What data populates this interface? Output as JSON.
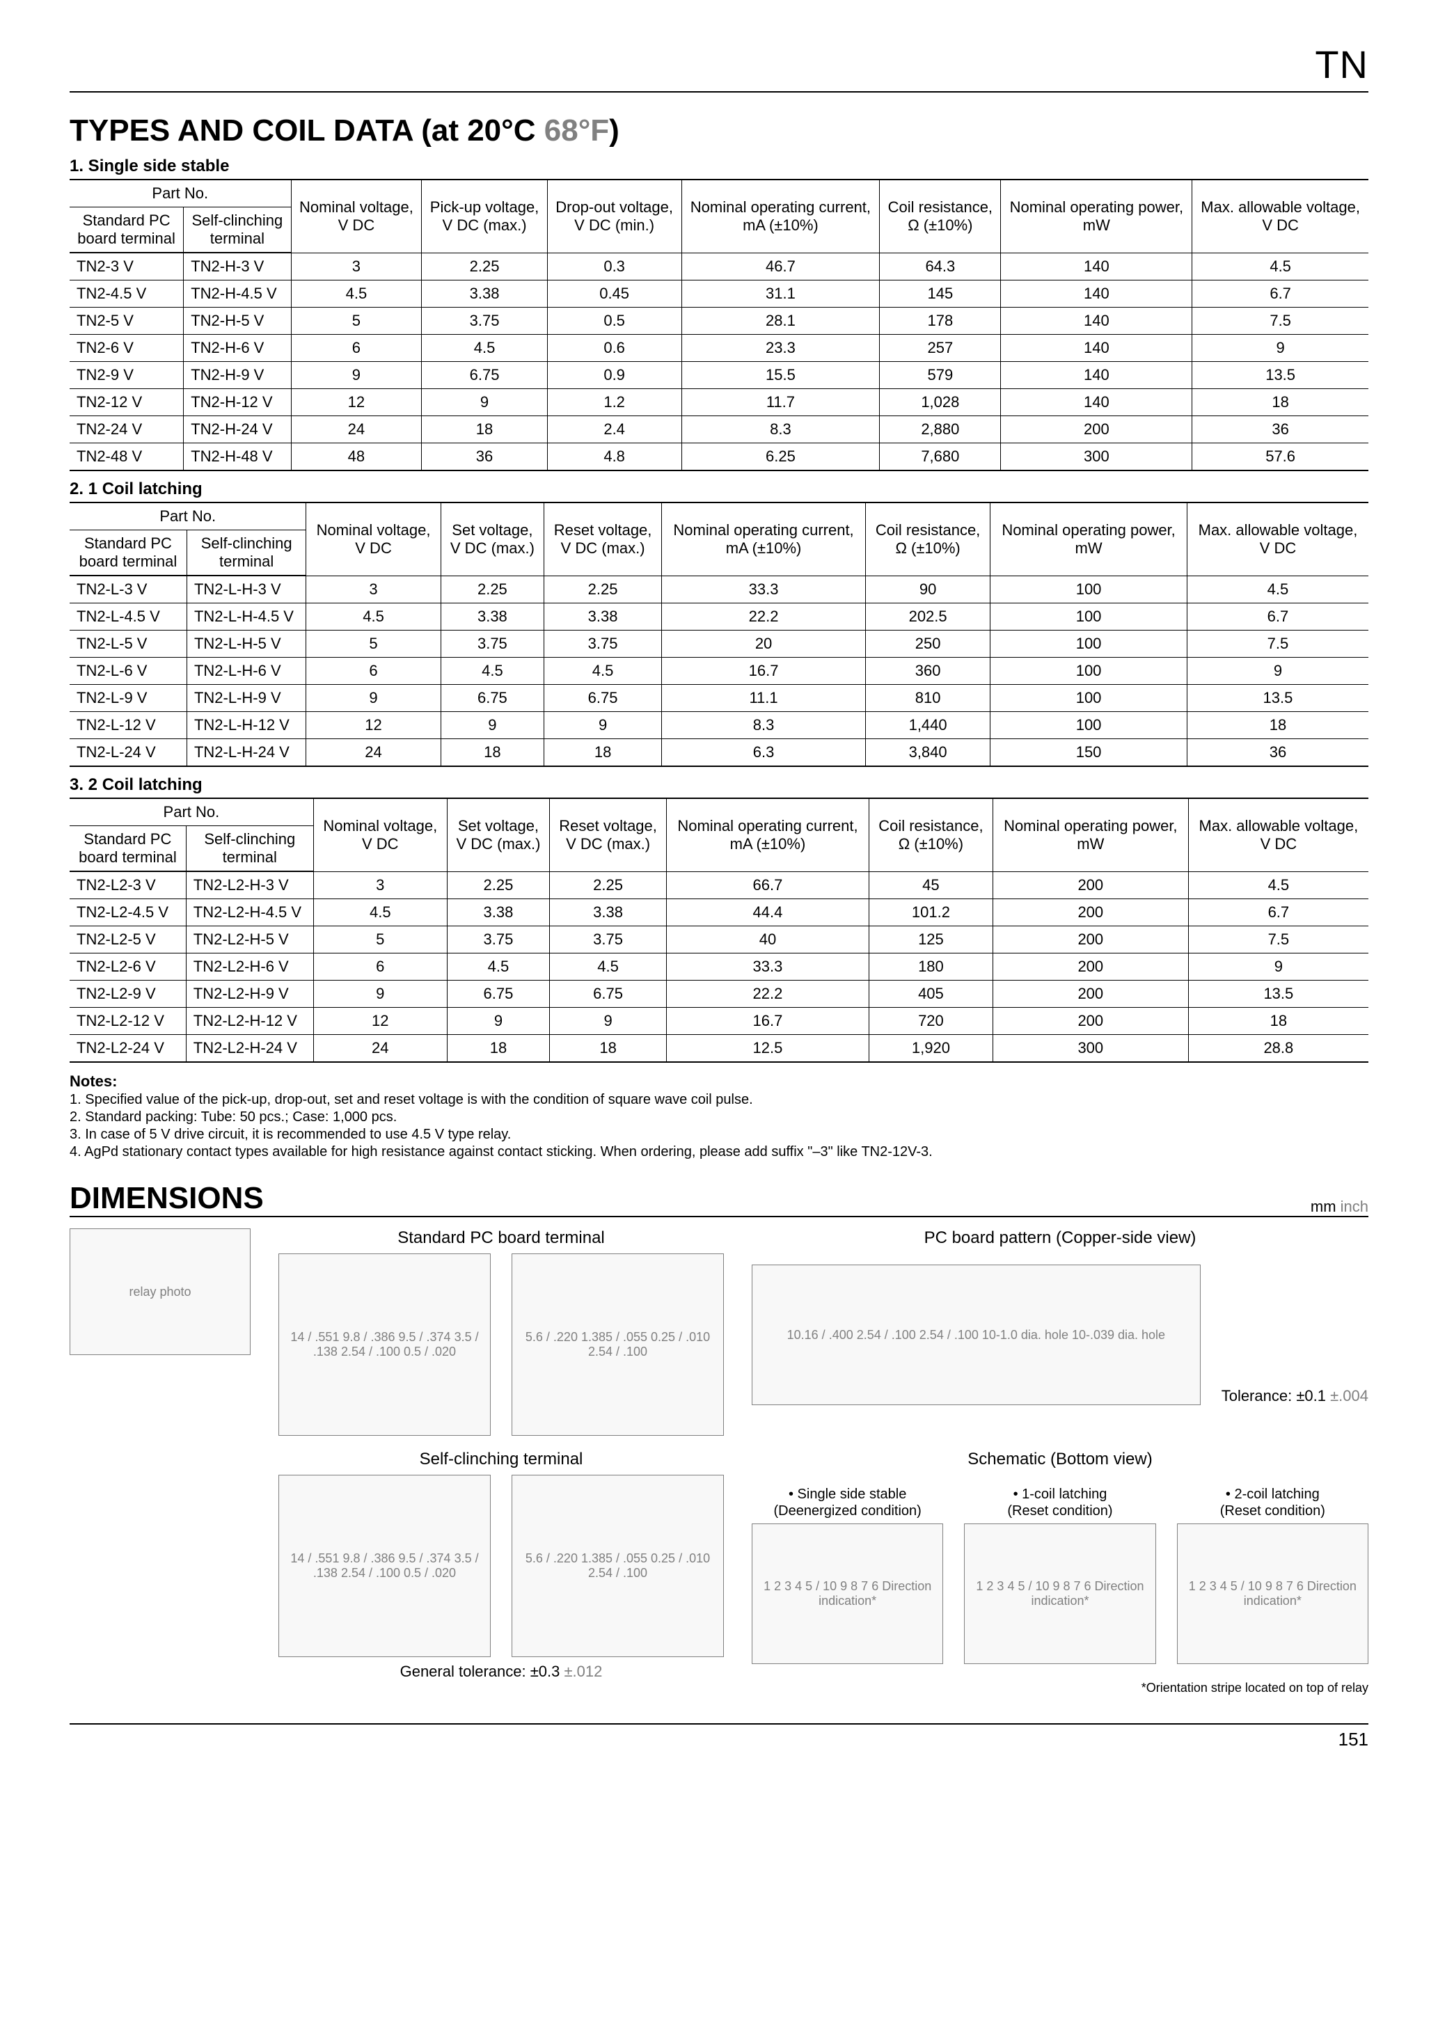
{
  "corner_label": "TN",
  "page_number": "151",
  "section_title_main": "TYPES AND COIL DATA (at 20°C ",
  "section_title_gray": "68°F",
  "section_title_close": ")",
  "tables": [
    {
      "subhead": "1. Single side stable",
      "partno_header": "Part No.",
      "part_col1": "Standard PC board terminal",
      "part_col2": "Self-clinching terminal",
      "headers": [
        "Nominal voltage, V DC",
        "Pick-up voltage, V DC (max.)",
        "Drop-out voltage, V DC (min.)",
        "Nominal operating current, mA (±10%)",
        "Coil resistance, Ω (±10%)",
        "Nominal operating power, mW",
        "Max. allowable voltage, V DC"
      ],
      "rows": [
        [
          "TN2-3 V",
          "TN2-H-3 V",
          "3",
          "2.25",
          "0.3",
          "46.7",
          "64.3",
          "140",
          "4.5"
        ],
        [
          "TN2-4.5 V",
          "TN2-H-4.5 V",
          "4.5",
          "3.38",
          "0.45",
          "31.1",
          "145",
          "140",
          "6.7"
        ],
        [
          "TN2-5 V",
          "TN2-H-5 V",
          "5",
          "3.75",
          "0.5",
          "28.1",
          "178",
          "140",
          "7.5"
        ],
        [
          "TN2-6 V",
          "TN2-H-6 V",
          "6",
          "4.5",
          "0.6",
          "23.3",
          "257",
          "140",
          "9"
        ],
        [
          "TN2-9 V",
          "TN2-H-9 V",
          "9",
          "6.75",
          "0.9",
          "15.5",
          "579",
          "140",
          "13.5"
        ],
        [
          "TN2-12 V",
          "TN2-H-12 V",
          "12",
          "9",
          "1.2",
          "11.7",
          "1,028",
          "140",
          "18"
        ],
        [
          "TN2-24 V",
          "TN2-H-24 V",
          "24",
          "18",
          "2.4",
          "8.3",
          "2,880",
          "200",
          "36"
        ],
        [
          "TN2-48 V",
          "TN2-H-48 V",
          "48",
          "36",
          "4.8",
          "6.25",
          "7,680",
          "300",
          "57.6"
        ]
      ]
    },
    {
      "subhead": "2. 1 Coil latching",
      "partno_header": "Part No.",
      "part_col1": "Standard PC board terminal",
      "part_col2": "Self-clinching terminal",
      "headers": [
        "Nominal voltage, V DC",
        "Set voltage, V DC (max.)",
        "Reset voltage, V DC (max.)",
        "Nominal operating current, mA (±10%)",
        "Coil resistance, Ω (±10%)",
        "Nominal operating power, mW",
        "Max. allowable voltage, V DC"
      ],
      "rows": [
        [
          "TN2-L-3 V",
          "TN2-L-H-3 V",
          "3",
          "2.25",
          "2.25",
          "33.3",
          "90",
          "100",
          "4.5"
        ],
        [
          "TN2-L-4.5 V",
          "TN2-L-H-4.5 V",
          "4.5",
          "3.38",
          "3.38",
          "22.2",
          "202.5",
          "100",
          "6.7"
        ],
        [
          "TN2-L-5 V",
          "TN2-L-H-5 V",
          "5",
          "3.75",
          "3.75",
          "20",
          "250",
          "100",
          "7.5"
        ],
        [
          "TN2-L-6 V",
          "TN2-L-H-6 V",
          "6",
          "4.5",
          "4.5",
          "16.7",
          "360",
          "100",
          "9"
        ],
        [
          "TN2-L-9 V",
          "TN2-L-H-9 V",
          "9",
          "6.75",
          "6.75",
          "11.1",
          "810",
          "100",
          "13.5"
        ],
        [
          "TN2-L-12 V",
          "TN2-L-H-12 V",
          "12",
          "9",
          "9",
          "8.3",
          "1,440",
          "100",
          "18"
        ],
        [
          "TN2-L-24 V",
          "TN2-L-H-24 V",
          "24",
          "18",
          "18",
          "6.3",
          "3,840",
          "150",
          "36"
        ]
      ]
    },
    {
      "subhead": "3. 2 Coil latching",
      "partno_header": "Part No.",
      "part_col1": "Standard PC board terminal",
      "part_col2": "Self-clinching terminal",
      "headers": [
        "Nominal voltage, V DC",
        "Set voltage, V DC (max.)",
        "Reset voltage, V DC (max.)",
        "Nominal operating current, mA (±10%)",
        "Coil resistance, Ω (±10%)",
        "Nominal operating power, mW",
        "Max. allowable voltage, V DC"
      ],
      "rows": [
        [
          "TN2-L2-3 V",
          "TN2-L2-H-3 V",
          "3",
          "2.25",
          "2.25",
          "66.7",
          "45",
          "200",
          "4.5"
        ],
        [
          "TN2-L2-4.5 V",
          "TN2-L2-H-4.5 V",
          "4.5",
          "3.38",
          "3.38",
          "44.4",
          "101.2",
          "200",
          "6.7"
        ],
        [
          "TN2-L2-5 V",
          "TN2-L2-H-5 V",
          "5",
          "3.75",
          "3.75",
          "40",
          "125",
          "200",
          "7.5"
        ],
        [
          "TN2-L2-6 V",
          "TN2-L2-H-6 V",
          "6",
          "4.5",
          "4.5",
          "33.3",
          "180",
          "200",
          "9"
        ],
        [
          "TN2-L2-9 V",
          "TN2-L2-H-9 V",
          "9",
          "6.75",
          "6.75",
          "22.2",
          "405",
          "200",
          "13.5"
        ],
        [
          "TN2-L2-12 V",
          "TN2-L2-H-12 V",
          "12",
          "9",
          "9",
          "16.7",
          "720",
          "200",
          "18"
        ],
        [
          "TN2-L2-24 V",
          "TN2-L2-H-24 V",
          "24",
          "18",
          "18",
          "12.5",
          "1,920",
          "300",
          "28.8"
        ]
      ]
    }
  ],
  "notes_head": "Notes:",
  "notes": [
    "1. Specified value of the pick-up, drop-out, set and reset voltage is with the condition of square wave coil pulse.",
    "2. Standard packing: Tube: 50 pcs.; Case: 1,000 pcs.",
    "3. In case of 5 V drive circuit, it is recommended to use 4.5 V type relay.",
    "4. AgPd stationary contact types available for high resistance against contact sticking. When ordering, please add suffix \"–3\" like TN2-12V-3."
  ],
  "dimensions_title": "DIMENSIONS",
  "units_mm": "mm ",
  "units_inch": "inch",
  "std_pc_title": "Standard PC board terminal",
  "self_clinch_title": "Self-clinching terminal",
  "pcb_pattern_title": "PC board pattern (Copper-side view)",
  "schematic_title": "Schematic (Bottom view)",
  "tolerance_label_main": "Tolerance: ±0.1 ",
  "tolerance_label_gray": "±.004",
  "gen_tol_main": "General tolerance: ±0.3 ",
  "gen_tol_gray": "±.012",
  "sch1_l1": "• Single side stable",
  "sch1_l2": "(Deenergized condition)",
  "sch2_l1": "• 1-coil latching",
  "sch2_l2": "(Reset condition)",
  "sch3_l1": "• 2-coil latching",
  "sch3_l2": "(Reset condition)",
  "orientation_note": "*Orientation stripe located on top of relay",
  "diagram_placeholders": {
    "relay": "relay photo",
    "mech_top": "14 / .551  9.8 / .386  9.5 / .374  3.5 / .138  2.54 / .100  0.5 / .020",
    "mech_side": "5.6 / .220  1.385 / .055  0.25 / .010  2.54 / .100",
    "pcb": "10.16 / .400  2.54 / .100  2.54 / .100  10-1.0 dia. hole  10-.039 dia. hole",
    "sch": "1 2 3 4 5 / 10 9 8 7 6  Direction indication*"
  }
}
